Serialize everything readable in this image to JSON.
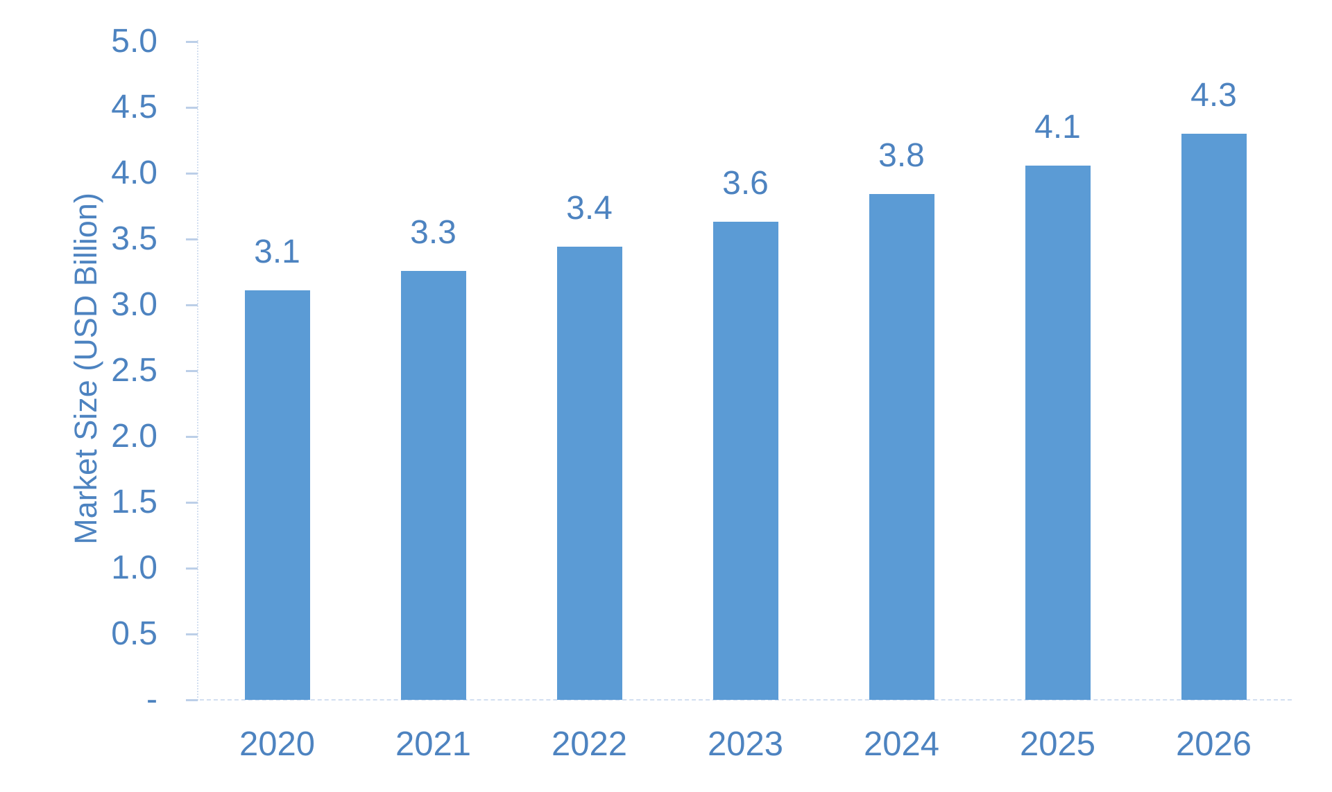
{
  "chart_data": {
    "type": "bar",
    "title": "",
    "xlabel": "",
    "ylabel": "Market Size (USD Billion)",
    "categories": [
      "2020",
      "2021",
      "2022",
      "2023",
      "2024",
      "2025",
      "2026"
    ],
    "series": [
      {
        "name": "Market Size (USD Billion)",
        "values": [
          3.11,
          3.26,
          3.44,
          3.63,
          3.84,
          4.06,
          4.3
        ]
      }
    ],
    "bar_value_labels": [
      "3.1",
      "3.3",
      "3.4",
      "3.6",
      "3.8",
      "4.1",
      "4.3"
    ],
    "ylim": [
      0,
      5
    ],
    "ytick_step": 0.5,
    "ytick_labels": [
      "-",
      "0.5",
      "1.0",
      "1.5",
      "2.0",
      "2.5",
      "3.0",
      "3.5",
      "4.0",
      "4.5",
      "5.0"
    ],
    "grid": false,
    "legend_position": "none",
    "colors": {
      "bar_fill": "#5B9BD5",
      "text": "#4D83C0",
      "axis_line": "#D3DFF0",
      "tick_mark": "#BCCFE8"
    }
  }
}
